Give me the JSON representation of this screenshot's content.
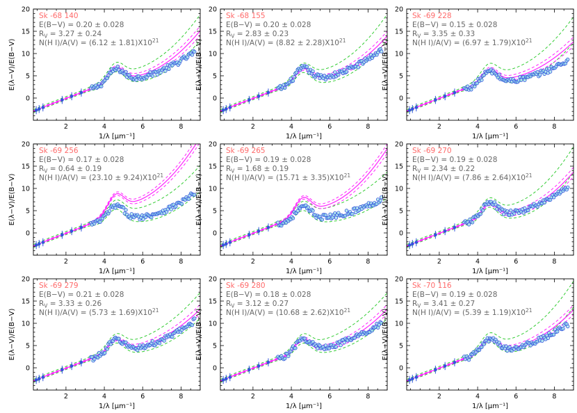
{
  "colors": {
    "axis": "#000000",
    "name": "#ff6a6a",
    "annotation": "#666666",
    "model_magenta": "#ff22ff",
    "model_green": "#33cc33",
    "data_points": "#3355dd",
    "data_point_fill": "#9fe3ea"
  },
  "chart_data": [
    {
      "type": "scatter",
      "name": "Sk -68 140",
      "ebv": "E(B−V) = 0.20 ± 0.028",
      "rv_label": "R",
      "rv_sub": "V",
      "rv_value": " = 3.27 ± 0.24",
      "nh_label": "N(H I)/A(V) = (6.12 ± 1.81)X10",
      "nh_exp": "21",
      "xlabel": "1/λ [μm⁻¹]",
      "ylabel": "E(λ−V)/E(B−V)",
      "xlim": [
        0.3,
        9.0
      ],
      "ylim": [
        -5,
        20
      ],
      "xticks": [
        "2",
        "4",
        "6",
        "8"
      ],
      "yticks": [
        "0",
        "5",
        "10",
        "15",
        "20"
      ],
      "magenta_params": [
        0.0,
        1.1,
        4.0,
        0.65
      ],
      "green_params": [
        0.15,
        1.08,
        3.6,
        0.7
      ],
      "data_params": [
        0.05,
        1.05,
        3.4,
        0.35
      ]
    },
    {
      "type": "scatter",
      "name": "Sk -68 155",
      "ebv": "E(B−V) = 0.20 ± 0.028",
      "rv_label": "R",
      "rv_sub": "V",
      "rv_value": " = 2.83 ± 0.23",
      "nh_label": "N(H I)/A(V) = (8.82 ± 2.28)X10",
      "nh_exp": "21",
      "xlabel": "1/λ [μm⁻¹]",
      "ylabel": "E(λ−V)/E(B−V)",
      "xlim": [
        0.3,
        9.0
      ],
      "ylim": [
        -5,
        20
      ],
      "xticks": [
        "2",
        "4",
        "6",
        "8"
      ],
      "yticks": [
        "0",
        "5",
        "10",
        "15",
        "20"
      ],
      "magenta_params": [
        -0.2,
        1.05,
        3.7,
        0.6
      ],
      "green_params": [
        0.25,
        1.05,
        3.3,
        0.75
      ],
      "data_params": [
        0.1,
        1.1,
        3.5,
        0.4
      ]
    },
    {
      "type": "scatter",
      "name": "Sk -69 228",
      "ebv": "E(B−V) = 0.15 ± 0.028",
      "rv_label": "R",
      "rv_sub": "V",
      "rv_value": " = 3.35 ± 0.33",
      "nh_label": "N(H I)/A(V) = (6.97 ± 1.79)X10",
      "nh_exp": "21",
      "xlabel": "1/λ [μm⁻¹]",
      "ylabel": "E(λ−V)/E(B−V)",
      "xlim": [
        0.3,
        9.0
      ],
      "ylim": [
        -5,
        20
      ],
      "xticks": [
        "2",
        "4",
        "6",
        "8"
      ],
      "yticks": [
        "0",
        "5",
        "10",
        "15",
        "20"
      ],
      "magenta_params": [
        0.0,
        1.05,
        3.4,
        0.5
      ],
      "green_params": [
        0.15,
        1.05,
        3.3,
        0.7
      ],
      "data_params": [
        0.05,
        1.0,
        2.5,
        0.3
      ]
    },
    {
      "type": "scatter",
      "name": "Sk -69 256",
      "ebv": "E(B−V) = 0.17 ± 0.028",
      "rv_label": "R",
      "rv_sub": "V",
      "rv_value": " = 0.64 ± 0.19",
      "nh_label": "N(H I)/A(V) = (23.10 ± 9.24)X10",
      "nh_exp": "21",
      "xlabel": "1/λ [μm⁻¹]",
      "ylabel": "E(λ−V)/E(B−V)",
      "xlim": [
        0.3,
        9.0
      ],
      "ylim": [
        -5,
        20
      ],
      "xticks": [
        "2",
        "4",
        "6",
        "8"
      ],
      "yticks": [
        "0",
        "5",
        "10",
        "15",
        "20"
      ],
      "magenta_params": [
        2.8,
        1.3,
        5.2,
        0.8
      ],
      "green_params": [
        0.0,
        1.1,
        2.2,
        0.6
      ],
      "data_params": [
        -0.2,
        1.1,
        2.2,
        0.45
      ]
    },
    {
      "type": "scatter",
      "name": "Sk -69 265",
      "ebv": "E(B−V) = 0.19 ± 0.028",
      "rv_label": "R",
      "rv_sub": "V",
      "rv_value": " = 1.68 ± 0.19",
      "nh_label": "N(H I)/A(V) = (15.71 ± 3.35)X10",
      "nh_exp": "21",
      "xlabel": "1/λ [μm⁻¹]",
      "ylabel": "E(λ−V)/E(B−V)",
      "xlim": [
        0.3,
        9.0
      ],
      "ylim": [
        -5,
        20
      ],
      "xticks": [
        "2",
        "4",
        "6",
        "8"
      ],
      "yticks": [
        "0",
        "5",
        "10",
        "15",
        "20"
      ],
      "magenta_params": [
        1.3,
        1.25,
        4.6,
        0.8
      ],
      "green_params": [
        0.6,
        1.0,
        1.8,
        0.45
      ],
      "data_params": [
        0.6,
        1.0,
        1.7,
        0.3
      ]
    },
    {
      "type": "scatter",
      "name": "Sk -69 270",
      "ebv": "E(B−V) = 0.19 ± 0.028",
      "rv_label": "R",
      "rv_sub": "V",
      "rv_value": " = 2.34 ± 0.22",
      "nh_label": "N(H I)/A(V) = (7.86 ± 2.64)X10",
      "nh_exp": "21",
      "xlabel": "1/λ [μm⁻¹]",
      "ylabel": "E(λ−V)/E(B−V)",
      "xlim": [
        0.3,
        9.0
      ],
      "ylim": [
        -5,
        20
      ],
      "xticks": [
        "2",
        "4",
        "6",
        "8"
      ],
      "yticks": [
        "0",
        "5",
        "10",
        "15",
        "20"
      ],
      "magenta_params": [
        0.3,
        1.1,
        3.0,
        0.65
      ],
      "green_params": [
        0.7,
        1.1,
        2.8,
        0.85
      ],
      "data_params": [
        0.4,
        1.15,
        3.0,
        0.4
      ]
    },
    {
      "type": "scatter",
      "name": "Sk -69 279",
      "ebv": "E(B−V) = 0.21 ± 0.028",
      "rv_label": "R",
      "rv_sub": "V",
      "rv_value": " = 3.33 ± 0.26",
      "nh_label": "N(H I)/A(V) = (5.73 ± 1.69)X10",
      "nh_exp": "21",
      "xlabel": "1/λ [μm⁻¹]",
      "ylabel": "E(λ−V)/E(B−V)",
      "xlim": [
        0.3,
        9.0
      ],
      "ylim": [
        -5,
        20
      ],
      "xticks": [
        "2",
        "4",
        "6",
        "8"
      ],
      "yticks": [
        "0",
        "5",
        "10",
        "15",
        "20"
      ],
      "magenta_params": [
        0.0,
        1.0,
        3.7,
        0.5
      ],
      "green_params": [
        0.1,
        1.0,
        3.4,
        0.55
      ],
      "data_params": [
        0.05,
        1.0,
        3.3,
        0.4
      ]
    },
    {
      "type": "scatter",
      "name": "Sk -69 280",
      "ebv": "E(B−V) = 0.18 ± 0.028",
      "rv_label": "R",
      "rv_sub": "V",
      "rv_value": " = 3.12 ± 0.27",
      "nh_label": "N(H I)/A(V) = (10.68 ± 2.62)X10",
      "nh_exp": "21",
      "xlabel": "1/λ [μm⁻¹]",
      "ylabel": "E(λ−V)/E(B−V)",
      "xlim": [
        0.3,
        9.0
      ],
      "ylim": [
        -5,
        20
      ],
      "xticks": [
        "2",
        "4",
        "6",
        "8"
      ],
      "yticks": [
        "0",
        "5",
        "10",
        "15",
        "20"
      ],
      "magenta_params": [
        -0.3,
        1.05,
        3.6,
        0.55
      ],
      "green_params": [
        0.0,
        1.0,
        3.4,
        0.55
      ],
      "data_params": [
        0.0,
        1.0,
        3.5,
        0.3
      ]
    },
    {
      "type": "scatter",
      "name": "Sk -70 116",
      "ebv": "E(B−V) = 0.19 ± 0.028",
      "rv_label": "R",
      "rv_sub": "V",
      "rv_value": " = 3.41 ± 0.27",
      "nh_label": "N(H I)/A(V) = (5.39 ± 1.19)X10",
      "nh_exp": "21",
      "xlabel": "1/λ [μm⁻¹]",
      "ylabel": "E(λ−V)/E(B−V)",
      "xlim": [
        0.3,
        9.0
      ],
      "ylim": [
        -5,
        20
      ],
      "xticks": [
        "2",
        "4",
        "6",
        "8"
      ],
      "yticks": [
        "0",
        "5",
        "10",
        "15",
        "20"
      ],
      "magenta_params": [
        -0.1,
        1.05,
        3.4,
        0.55
      ],
      "green_params": [
        0.4,
        1.05,
        3.3,
        0.8
      ],
      "data_params": [
        0.2,
        1.05,
        3.0,
        0.35
      ]
    }
  ]
}
